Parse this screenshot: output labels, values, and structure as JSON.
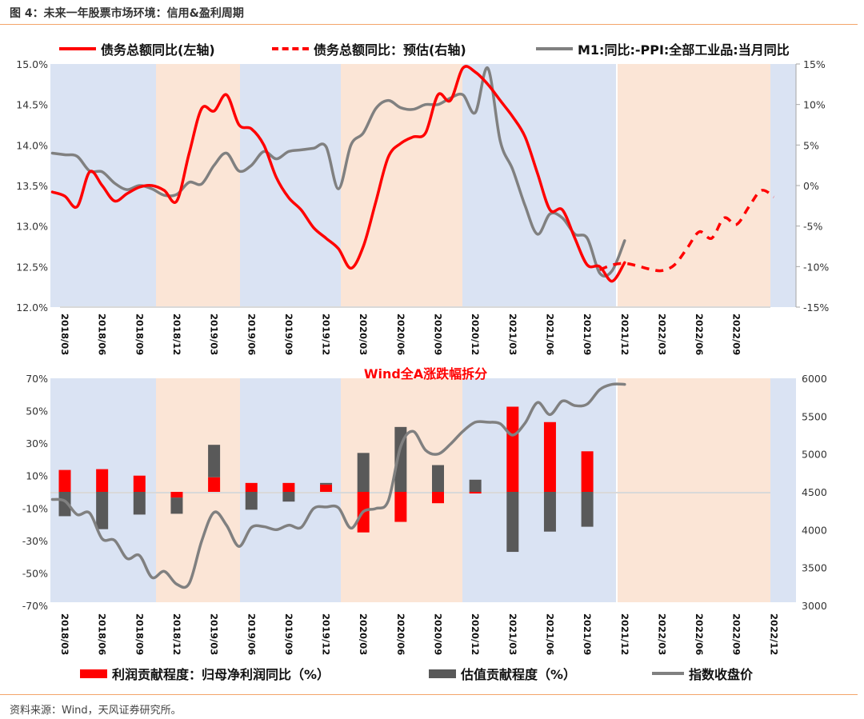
{
  "header": {
    "title": "图 4：未来一年股票市场环境：信用&盈利周期"
  },
  "footer": {
    "source": "资料来源：Wind，天风证券研究所。"
  },
  "colors": {
    "red": "#ff0000",
    "gray_line": "#808080",
    "dark_bar": "#595959",
    "band_blue": "#dae3f3",
    "band_orange": "#fbe5d6",
    "rule": "#f4a46a"
  },
  "chart_data": [
    {
      "type": "line",
      "title": "",
      "legend": [
        {
          "label": "债务总额同比(左轴)",
          "style": "solid-red"
        },
        {
          "label": "债务总额同比：预估(右轴)",
          "style": "dashed-red"
        },
        {
          "label": "M1:同比:-PPI:全部工业品:当月同比",
          "style": "solid-gray"
        }
      ],
      "legend_position": "top",
      "x_ticks": [
        "2018/03",
        "2018/06",
        "2018/09",
        "2018/12",
        "2019/03",
        "2019/06",
        "2019/09",
        "2019/12",
        "2020/03",
        "2020/06",
        "2020/09",
        "2020/12",
        "2021/03",
        "2021/06",
        "2021/09",
        "2021/12",
        "2022/03",
        "2022/06",
        "2022/09"
      ],
      "y_left": {
        "ylim": [
          12.0,
          15.0
        ],
        "ticks": [
          "12.0%",
          "12.5%",
          "13.0%",
          "13.5%",
          "14.0%",
          "14.5%",
          "15.0%"
        ]
      },
      "y_right": {
        "ylim": [
          -15,
          15
        ],
        "ticks": [
          "-15%",
          "-10%",
          "-5%",
          "0%",
          "5%",
          "10%",
          "15%"
        ]
      },
      "bands": [
        {
          "from": "2018/02",
          "to": "2018/11",
          "color": "blue"
        },
        {
          "from": "2018/11",
          "to": "2019/06",
          "color": "orange"
        },
        {
          "from": "2019/06",
          "to": "2020/02",
          "color": "blue"
        },
        {
          "from": "2020/02",
          "to": "2020/12",
          "color": "orange"
        },
        {
          "from": "2020/12",
          "to": "2021/10",
          "color": "blue"
        },
        {
          "from": "2021/10",
          "to": "2022/10",
          "color": "orange"
        },
        {
          "from": "2022/10",
          "to": "2022/12",
          "color": "blue"
        }
      ],
      "series": [
        {
          "name": "债务总额同比(左轴)",
          "axis": "left",
          "x": [
            "2018/02",
            "2018/03",
            "2018/04",
            "2018/05",
            "2018/06",
            "2018/07",
            "2018/08",
            "2018/09",
            "2018/10",
            "2018/11",
            "2018/12",
            "2019/01",
            "2019/02",
            "2019/03",
            "2019/04",
            "2019/05",
            "2019/06",
            "2019/07",
            "2019/08",
            "2019/09",
            "2019/10",
            "2019/11",
            "2019/12",
            "2020/01",
            "2020/02",
            "2020/03",
            "2020/04",
            "2020/05",
            "2020/06",
            "2020/07",
            "2020/08",
            "2020/09",
            "2020/10",
            "2020/11",
            "2020/12",
            "2021/01",
            "2021/02",
            "2021/03",
            "2021/04",
            "2021/05",
            "2021/06",
            "2021/07",
            "2021/08",
            "2021/09",
            "2021/10",
            "2021/11",
            "2021/12"
          ],
          "values": [
            13.42,
            13.37,
            13.24,
            13.67,
            13.5,
            13.31,
            13.4,
            13.48,
            13.5,
            13.44,
            13.31,
            13.9,
            14.45,
            14.42,
            14.62,
            14.25,
            14.2,
            14.0,
            13.6,
            13.35,
            13.2,
            12.98,
            12.85,
            12.72,
            12.48,
            12.75,
            13.3,
            13.85,
            14.02,
            14.1,
            14.15,
            14.62,
            14.55,
            14.95,
            14.9,
            14.75,
            14.55,
            14.35,
            14.1,
            13.65,
            13.2,
            13.2,
            12.85,
            12.52,
            12.5,
            12.32,
            12.55
          ]
        },
        {
          "name": "债务总额同比：预估(右轴)",
          "axis": "right",
          "x": [
            "2021/10",
            "2021/11",
            "2021/12",
            "2022/01",
            "2022/02",
            "2022/03",
            "2022/04",
            "2022/05",
            "2022/06",
            "2022/07",
            "2022/08",
            "2022/09",
            "2022/10",
            "2022/11",
            "2022/12"
          ],
          "values": [
            -10.4,
            -9.8,
            -9.6,
            -9.9,
            -10.3,
            -10.5,
            -9.8,
            -7.8,
            -5.7,
            -6.5,
            -4.0,
            -4.8,
            -2.6,
            -0.6,
            -1.4
          ]
        },
        {
          "name": "M1:同比:-PPI:全部工业品:当月同比",
          "axis": "right",
          "x": [
            "2018/02",
            "2018/03",
            "2018/04",
            "2018/05",
            "2018/06",
            "2018/07",
            "2018/08",
            "2018/09",
            "2018/10",
            "2018/11",
            "2018/12",
            "2019/01",
            "2019/02",
            "2019/03",
            "2019/04",
            "2019/05",
            "2019/06",
            "2019/07",
            "2019/08",
            "2019/09",
            "2019/10",
            "2019/11",
            "2019/12",
            "2020/01",
            "2020/02",
            "2020/03",
            "2020/04",
            "2020/05",
            "2020/06",
            "2020/07",
            "2020/08",
            "2020/09",
            "2020/10",
            "2020/11",
            "2020/12",
            "2021/01",
            "2021/02",
            "2021/03",
            "2021/04",
            "2021/05",
            "2021/06",
            "2021/07",
            "2021/08",
            "2021/09",
            "2021/10",
            "2021/11",
            "2021/12"
          ],
          "values": [
            4.0,
            3.8,
            3.6,
            1.8,
            1.7,
            0.3,
            -0.5,
            0.0,
            -0.4,
            -1.2,
            -1.1,
            0.4,
            0.2,
            2.5,
            4.0,
            1.8,
            2.5,
            4.2,
            3.3,
            4.2,
            4.4,
            4.6,
            4.8,
            -0.4,
            5.0,
            6.5,
            9.5,
            10.5,
            9.6,
            9.4,
            10.0,
            10.0,
            10.8,
            11.2,
            9.0,
            14.5,
            5.5,
            2.0,
            -2.5,
            -6.0,
            -3.5,
            -4.0,
            -6.0,
            -6.5,
            -10.8,
            -10.5,
            -6.8
          ]
        }
      ]
    },
    {
      "type": "bar",
      "title": "Wind全A涨跌幅拆分",
      "legend": [
        {
          "label": "利润贡献程度：归母净利润同比（%）",
          "style": "red-box"
        },
        {
          "label": "估值贡献程度（%）",
          "style": "dark-box"
        },
        {
          "label": "指数收盘价",
          "style": "solid-gray"
        }
      ],
      "legend_position": "bottom",
      "x_ticks": [
        "2018/03",
        "2018/06",
        "2018/09",
        "2018/12",
        "2019/03",
        "2019/06",
        "2019/09",
        "2019/12",
        "2020/03",
        "2020/06",
        "2020/09",
        "2020/12",
        "2021/03",
        "2021/06",
        "2021/09",
        "2021/12",
        "2022/03",
        "2022/06",
        "2022/09",
        "2022/12"
      ],
      "y_left": {
        "ylim": [
          -70,
          70
        ],
        "ticks": [
          "-70%",
          "-50%",
          "-30%",
          "-10%",
          "10%",
          "30%",
          "50%",
          "70%"
        ]
      },
      "y_right": {
        "ylim": [
          3000,
          6000
        ],
        "ticks": [
          "3000",
          "3500",
          "4000",
          "4500",
          "5000",
          "5500",
          "6000"
        ]
      },
      "bands": [
        {
          "from": "2018/02",
          "to": "2018/11",
          "color": "blue"
        },
        {
          "from": "2018/11",
          "to": "2019/06",
          "color": "orange"
        },
        {
          "from": "2019/06",
          "to": "2020/02",
          "color": "blue"
        },
        {
          "from": "2020/02",
          "to": "2020/12",
          "color": "orange"
        },
        {
          "from": "2020/12",
          "to": "2021/10",
          "color": "blue"
        },
        {
          "from": "2021/10",
          "to": "2022/10",
          "color": "orange"
        },
        {
          "from": "2022/10",
          "to": "2022/12",
          "color": "blue"
        }
      ],
      "categories": [
        "2018/03",
        "2018/06",
        "2018/09",
        "2018/12",
        "2019/03",
        "2019/06",
        "2019/09",
        "2019/12",
        "2020/03",
        "2020/06",
        "2020/09",
        "2020/12",
        "2021/03",
        "2021/06",
        "2021/09"
      ],
      "series": [
        {
          "name": "利润贡献程度：归母净利润同比（%）",
          "values": [
            13.5,
            14.0,
            10.0,
            -3.5,
            9.0,
            5.5,
            5.5,
            4.5,
            -25.0,
            -18.5,
            -7.0,
            -1.0,
            52.5,
            43.0,
            25.0
          ]
        },
        {
          "name": "估值贡献程度（%）",
          "values": [
            -15.0,
            -23.0,
            -14.0,
            -10.0,
            20.0,
            -11.0,
            -6.0,
            1.0,
            24.0,
            40.0,
            16.5,
            7.5,
            -37.0,
            -24.5,
            -21.5
          ]
        }
      ],
      "line": {
        "name": "指数收盘价",
        "x": [
          "2018/02",
          "2018/03",
          "2018/04",
          "2018/05",
          "2018/06",
          "2018/07",
          "2018/08",
          "2018/09",
          "2018/10",
          "2018/11",
          "2018/12",
          "2019/01",
          "2019/02",
          "2019/03",
          "2019/04",
          "2019/05",
          "2019/06",
          "2019/07",
          "2019/08",
          "2019/09",
          "2019/10",
          "2019/11",
          "2019/12",
          "2020/01",
          "2020/02",
          "2020/03",
          "2020/04",
          "2020/05",
          "2020/06",
          "2020/07",
          "2020/08",
          "2020/09",
          "2020/10",
          "2020/11",
          "2020/12",
          "2021/01",
          "2021/02",
          "2021/03",
          "2021/04",
          "2021/05",
          "2021/06",
          "2021/07",
          "2021/08",
          "2021/09",
          "2021/10",
          "2021/11",
          "2021/12"
        ],
        "values": [
          4400,
          4380,
          4200,
          4220,
          3880,
          3860,
          3620,
          3660,
          3370,
          3450,
          3280,
          3290,
          3850,
          4230,
          4060,
          3780,
          4030,
          4040,
          4000,
          4060,
          4030,
          4280,
          4300,
          4290,
          4020,
          4240,
          4280,
          4380,
          5100,
          5300,
          5050,
          5000,
          5130,
          5300,
          5420,
          5420,
          5400,
          5250,
          5410,
          5680,
          5520,
          5700,
          5640,
          5660,
          5850,
          5920,
          5920
        ]
      }
    }
  ]
}
